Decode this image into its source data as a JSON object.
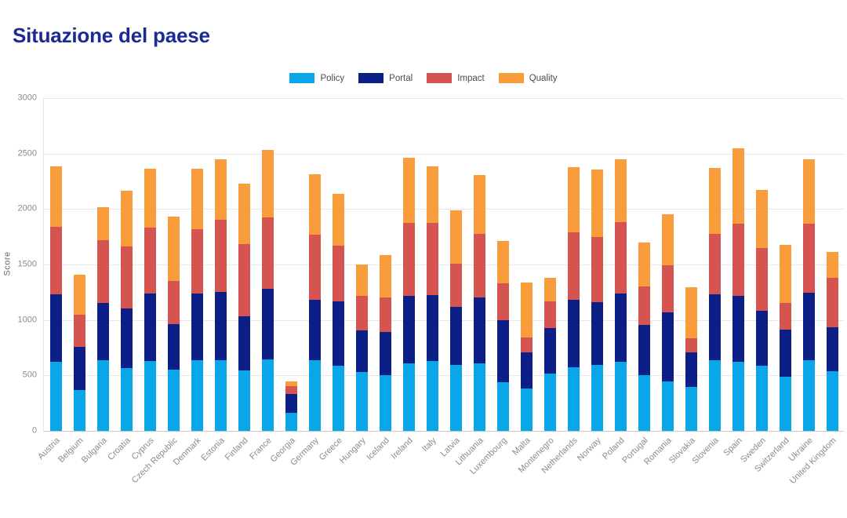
{
  "theme": {
    "title_color": "#1c2b94",
    "axis_text": "#8b8b8b",
    "legend_text": "#4c4c4c",
    "gridline": "#e8e8e8",
    "axis_line": "#c9c9c9",
    "background": "#ffffff"
  },
  "chart_data": {
    "type": "bar",
    "stacked": true,
    "title": "Situazione del paese",
    "xlabel": "",
    "ylabel": "Score",
    "ylim": [
      0,
      3000
    ],
    "yticks": [
      0,
      500,
      1000,
      1500,
      2000,
      2500,
      3000
    ],
    "grid": true,
    "legend_position": "top-center",
    "categories": [
      "Austria",
      "Belgium",
      "Bulgaria",
      "Croatia",
      "Cyprus",
      "Czech Republic",
      "Denmark",
      "Estonia",
      "Finland",
      "France",
      "Georgia",
      "Germany",
      "Greece",
      "Hungary",
      "Iceland",
      "Ireland",
      "Italy",
      "Latvia",
      "Lithuania",
      "Luxembourg",
      "Malta",
      "Montenegro",
      "Netherlands",
      "Norway",
      "Poland",
      "Portugal",
      "Romania",
      "Slovakia",
      "Slovenia",
      "Spain",
      "Sweden",
      "Switzerland",
      "Ukraine",
      "United Kingdom"
    ],
    "series": [
      {
        "name": "Policy",
        "color": "#09a7e9",
        "values": [
          625,
          370,
          635,
          565,
          630,
          550,
          635,
          640,
          545,
          645,
          165,
          635,
          590,
          530,
          500,
          610,
          630,
          595,
          610,
          440,
          380,
          515,
          570,
          595,
          620,
          500,
          445,
          395,
          635,
          625,
          585,
          485,
          635,
          540
        ]
      },
      {
        "name": "Portal",
        "color": "#0c1f87",
        "values": [
          605,
          390,
          520,
          540,
          610,
          415,
          605,
          615,
          490,
          635,
          165,
          545,
          575,
          375,
          390,
          610,
          595,
          525,
          595,
          560,
          325,
          410,
          615,
          565,
          620,
          455,
          620,
          310,
          595,
          590,
          500,
          430,
          610,
          395
        ]
      },
      {
        "name": "Impact",
        "color": "#d5544f",
        "values": [
          610,
          285,
          565,
          560,
          590,
          385,
          580,
          645,
          650,
          645,
          75,
          590,
          505,
          315,
          310,
          655,
          650,
          385,
          570,
          330,
          140,
          245,
          605,
          590,
          645,
          345,
          425,
          130,
          545,
          650,
          565,
          240,
          620,
          445
        ]
      },
      {
        "name": "Quality",
        "color": "#f99c3c",
        "values": [
          545,
          365,
          295,
          500,
          535,
          580,
          545,
          550,
          545,
          610,
          40,
          545,
          470,
          280,
          385,
          590,
          510,
          485,
          530,
          385,
          490,
          210,
          585,
          605,
          560,
          400,
          465,
          460,
          595,
          685,
          520,
          520,
          580,
          235
        ]
      }
    ]
  }
}
